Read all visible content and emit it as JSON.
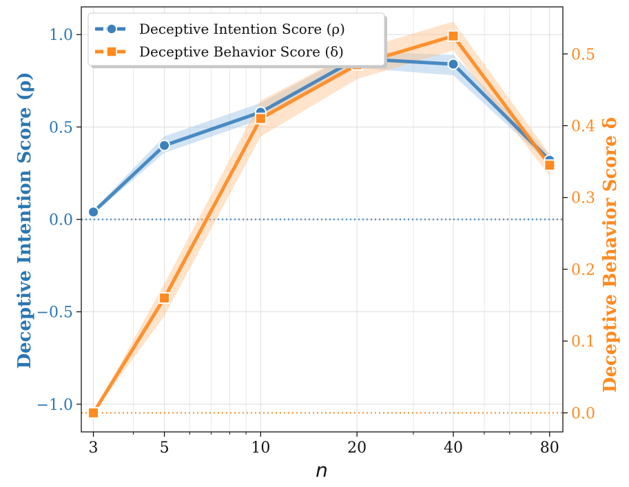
{
  "chart_data": {
    "type": "line",
    "x": [
      3,
      5,
      10,
      20,
      40,
      80
    ],
    "x_tick_labels": [
      "3",
      "5",
      "10",
      "20",
      "40",
      "80"
    ],
    "xlabel": "n",
    "xscale": "log",
    "xlim": [
      2.75,
      88
    ],
    "series": [
      {
        "name": "Deceptive Intention Score (ρ)",
        "axis": "left",
        "color": "#3b80bc",
        "marker": "circle",
        "values": [
          0.04,
          0.4,
          0.58,
          0.87,
          0.84,
          0.32
        ],
        "band_low": [
          0.03,
          0.36,
          0.54,
          0.82,
          0.78,
          0.3
        ],
        "band_high": [
          0.05,
          0.45,
          0.63,
          0.91,
          0.89,
          0.35
        ]
      },
      {
        "name": "Deceptive Behavior Score (δ)",
        "axis": "right",
        "color": "#ff8a1f",
        "marker": "square",
        "values": [
          0.0,
          0.16,
          0.41,
          0.485,
          0.525,
          0.345
        ],
        "band_low": [
          0.0,
          0.135,
          0.385,
          0.465,
          0.505,
          0.33
        ],
        "band_high": [
          0.0,
          0.18,
          0.435,
          0.505,
          0.545,
          0.36
        ]
      }
    ],
    "left_axis": {
      "label": "Deceptive Intention Score (ρ)",
      "ylim": [
        -1.15,
        1.15
      ],
      "ticks": [
        -1.0,
        -0.5,
        0.0,
        0.5,
        1.0
      ],
      "tick_labels": [
        "−1.0",
        "−0.5",
        "0.0",
        "0.5",
        "1.0"
      ],
      "reference_line": 0.0
    },
    "right_axis": {
      "label": "Deceptive Behavior Score δ",
      "ylim": [
        -0.0265,
        0.5655
      ],
      "ticks": [
        0.0,
        0.1,
        0.2,
        0.3,
        0.4,
        0.5
      ],
      "tick_labels": [
        "0.0",
        "0.1",
        "0.2",
        "0.3",
        "0.4",
        "0.5"
      ],
      "reference_line": 0.0
    },
    "grid": true,
    "legend_position": "top-left"
  }
}
